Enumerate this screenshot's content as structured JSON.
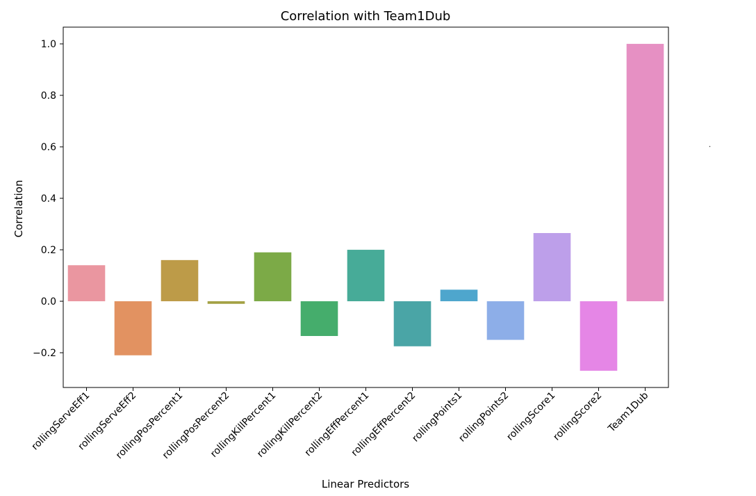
{
  "chart_data": {
    "type": "bar",
    "title": "Correlation with Team1Dub",
    "xlabel": "Linear Predictors",
    "ylabel": "Correlation",
    "ylim": [
      -0.335,
      1.065
    ],
    "yticks": [
      -0.2,
      0.0,
      0.2,
      0.4,
      0.6,
      0.8,
      1.0
    ],
    "ytick_labels": [
      "−0.2",
      "0.0",
      "0.2",
      "0.4",
      "0.6",
      "0.8",
      "1.0"
    ],
    "grid": false,
    "categories": [
      "rollingServeEff1",
      "rollingServeEff2",
      "rollingPosPercent1",
      "rollingPosPercent2",
      "rollingKillPercent1",
      "rollingKillPercent2",
      "rollingEffPercent1",
      "rollingEffPercent2",
      "rollingPoints1",
      "rollingPoints2",
      "rollingScore1",
      "rollingScore2",
      "Team1Dub"
    ],
    "values": [
      0.14,
      -0.21,
      0.16,
      -0.01,
      0.19,
      -0.135,
      0.2,
      -0.175,
      0.045,
      -0.15,
      0.265,
      -0.27,
      1.0
    ],
    "colors": [
      "#ea96a0",
      "#e29261",
      "#bd9b48",
      "#a3a144",
      "#7caa47",
      "#45ad6c",
      "#47ab98",
      "#4aa5a6",
      "#4ea6cd",
      "#8daee8",
      "#bd9fea",
      "#e586e6",
      "#e690c3"
    ]
  }
}
